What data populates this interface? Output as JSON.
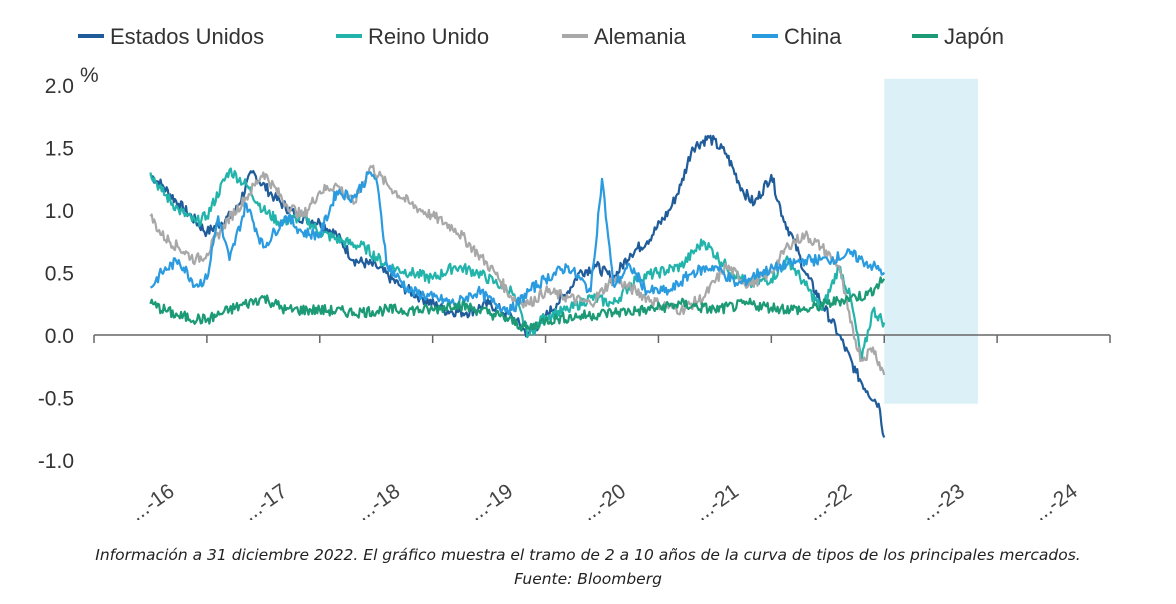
{
  "chart_data": {
    "type": "line",
    "unit_label": "%",
    "ylim": [
      -1.0,
      2.0
    ],
    "yticks": [
      2.0,
      1.5,
      1.0,
      0.5,
      0.0,
      -0.5,
      -1.0
    ],
    "ytick_labels": [
      "2.0",
      "1.5",
      "1.0",
      "0.5",
      "0.0",
      "-0.5",
      "-1.0"
    ],
    "xlim": [
      2016.0,
      2025.0
    ],
    "xtick_labels": [
      "2016",
      "2017",
      "2018",
      "2019",
      "2020",
      "2021",
      "2022",
      "2023",
      "2024"
    ],
    "xtick_display": [
      "...-16",
      "...-17",
      "...-18",
      "...-19",
      "...-20",
      "...-21",
      "...-22",
      "...-23",
      "...-24"
    ],
    "grid": false,
    "legend_position": "top",
    "highlight_region": {
      "x_start": 2023.0,
      "x_end": 2023.83,
      "y_top": 2.05,
      "y_bottom": -0.55,
      "color": "#dcf0f7"
    },
    "series": [
      {
        "name": "Estados Unidos",
        "color": "#1f5c99",
        "x": [
          2016.5,
          2016.6,
          2016.75,
          2017.0,
          2017.25,
          2017.4,
          2017.6,
          2017.8,
          2018.0,
          2018.15,
          2018.3,
          2018.5,
          2018.7,
          2018.9,
          2019.1,
          2019.3,
          2019.5,
          2019.6,
          2019.7,
          2019.85,
          2020.0,
          2020.1,
          2020.2,
          2020.3,
          2020.45,
          2020.6,
          2020.75,
          2020.9,
          2021.1,
          2021.2,
          2021.3,
          2021.45,
          2021.6,
          2021.75,
          2021.85,
          2022.0,
          2022.1,
          2022.2,
          2022.3,
          2022.45,
          2022.6,
          2022.75,
          2022.85,
          2022.95,
          2023.0
        ],
        "values": [
          1.28,
          1.2,
          1.05,
          0.82,
          0.98,
          1.3,
          1.1,
          0.95,
          0.9,
          0.8,
          0.6,
          0.55,
          0.4,
          0.3,
          0.2,
          0.18,
          0.25,
          0.2,
          0.15,
          0.0,
          0.15,
          0.25,
          0.35,
          0.5,
          0.55,
          0.45,
          0.65,
          0.75,
          1.0,
          1.2,
          1.5,
          1.58,
          1.45,
          1.15,
          1.05,
          1.28,
          0.95,
          0.75,
          0.5,
          0.25,
          0.0,
          -0.3,
          -0.45,
          -0.55,
          -0.82
        ]
      },
      {
        "name": "Reino Unido",
        "color": "#22b3aa",
        "x": [
          2016.5,
          2016.6,
          2016.75,
          2016.9,
          2017.0,
          2017.2,
          2017.35,
          2017.5,
          2017.65,
          2017.85,
          2018.0,
          2018.2,
          2018.4,
          2018.6,
          2018.8,
          2019.0,
          2019.2,
          2019.4,
          2019.55,
          2019.7,
          2019.85,
          2020.0,
          2020.2,
          2020.4,
          2020.6,
          2020.8,
          2021.0,
          2021.2,
          2021.4,
          2021.6,
          2021.8,
          2022.0,
          2022.15,
          2022.3,
          2022.45,
          2022.6,
          2022.7,
          2022.8,
          2022.9,
          2023.0
        ],
        "values": [
          1.3,
          1.15,
          1.0,
          0.9,
          0.95,
          1.32,
          1.2,
          1.0,
          0.9,
          0.95,
          0.82,
          0.75,
          0.7,
          0.55,
          0.5,
          0.45,
          0.55,
          0.5,
          0.42,
          0.35,
          0.0,
          0.15,
          0.2,
          0.3,
          0.25,
          0.45,
          0.5,
          0.55,
          0.75,
          0.55,
          0.4,
          0.45,
          0.6,
          0.4,
          0.2,
          0.55,
          0.3,
          -0.2,
          0.2,
          0.1
        ]
      },
      {
        "name": "Alemania",
        "color": "#a8a8a8",
        "x": [
          2016.5,
          2016.6,
          2016.75,
          2016.9,
          2017.0,
          2017.15,
          2017.35,
          2017.5,
          2017.7,
          2017.85,
          2018.0,
          2018.15,
          2018.3,
          2018.45,
          2018.6,
          2018.8,
          2019.0,
          2019.2,
          2019.4,
          2019.55,
          2019.7,
          2019.85,
          2020.0,
          2020.2,
          2020.4,
          2020.6,
          2020.8,
          2021.0,
          2021.2,
          2021.4,
          2021.6,
          2021.8,
          2022.0,
          2022.15,
          2022.3,
          2022.45,
          2022.6,
          2022.7,
          2022.8,
          2022.9,
          2023.0
        ],
        "values": [
          0.95,
          0.8,
          0.7,
          0.6,
          0.65,
          0.88,
          1.1,
          1.3,
          1.05,
          0.95,
          1.15,
          1.2,
          1.05,
          1.35,
          1.2,
          1.05,
          0.95,
          0.85,
          0.65,
          0.5,
          0.3,
          0.25,
          0.35,
          0.3,
          0.25,
          0.45,
          0.35,
          0.25,
          0.2,
          0.3,
          0.55,
          0.4,
          0.5,
          0.72,
          0.8,
          0.7,
          0.55,
          0.1,
          -0.2,
          -0.1,
          -0.32
        ]
      },
      {
        "name": "China",
        "color": "#2b9be0",
        "x": [
          2016.5,
          2016.6,
          2016.75,
          2016.9,
          2017.0,
          2017.1,
          2017.2,
          2017.35,
          2017.5,
          2017.7,
          2017.85,
          2018.0,
          2018.15,
          2018.3,
          2018.45,
          2018.5,
          2018.6,
          2018.8,
          2019.0,
          2019.2,
          2019.4,
          2019.55,
          2019.7,
          2019.85,
          2020.0,
          2020.2,
          2020.4,
          2020.5,
          2020.6,
          2020.75,
          2020.9,
          2021.1,
          2021.3,
          2021.5,
          2021.7,
          2021.9,
          2022.1,
          2022.3,
          2022.5,
          2022.7,
          2022.9,
          2023.0
        ],
        "values": [
          0.38,
          0.5,
          0.6,
          0.4,
          0.45,
          0.95,
          0.6,
          1.05,
          0.7,
          0.95,
          0.82,
          0.8,
          1.15,
          1.1,
          1.3,
          1.25,
          0.55,
          0.35,
          0.3,
          0.25,
          0.35,
          0.25,
          0.2,
          0.35,
          0.45,
          0.55,
          0.35,
          1.25,
          0.4,
          0.55,
          0.35,
          0.35,
          0.5,
          0.55,
          0.4,
          0.5,
          0.55,
          0.6,
          0.6,
          0.65,
          0.55,
          0.5
        ]
      },
      {
        "name": "Japón",
        "color": "#1b9a75",
        "x": [
          2016.5,
          2016.75,
          2017.0,
          2017.2,
          2017.5,
          2017.7,
          2018.0,
          2018.3,
          2018.6,
          2019.0,
          2019.2,
          2019.4,
          2019.6,
          2019.85,
          2020.0,
          2020.3,
          2020.6,
          2020.9,
          2021.2,
          2021.5,
          2021.8,
          2022.0,
          2022.3,
          2022.5,
          2022.7,
          2022.85,
          2023.0
        ],
        "values": [
          0.25,
          0.15,
          0.12,
          0.2,
          0.3,
          0.2,
          0.2,
          0.18,
          0.2,
          0.2,
          0.25,
          0.2,
          0.15,
          0.05,
          0.12,
          0.15,
          0.18,
          0.2,
          0.25,
          0.2,
          0.25,
          0.22,
          0.2,
          0.25,
          0.3,
          0.32,
          0.45
        ]
      }
    ]
  },
  "caption": {
    "line1": "Información a 31 diciembre 2022. El gráfico muestra el tramo de 2 a 10 años de la curva de tipos de los principales mercados.",
    "line2": "Fuente: Bloomberg"
  }
}
